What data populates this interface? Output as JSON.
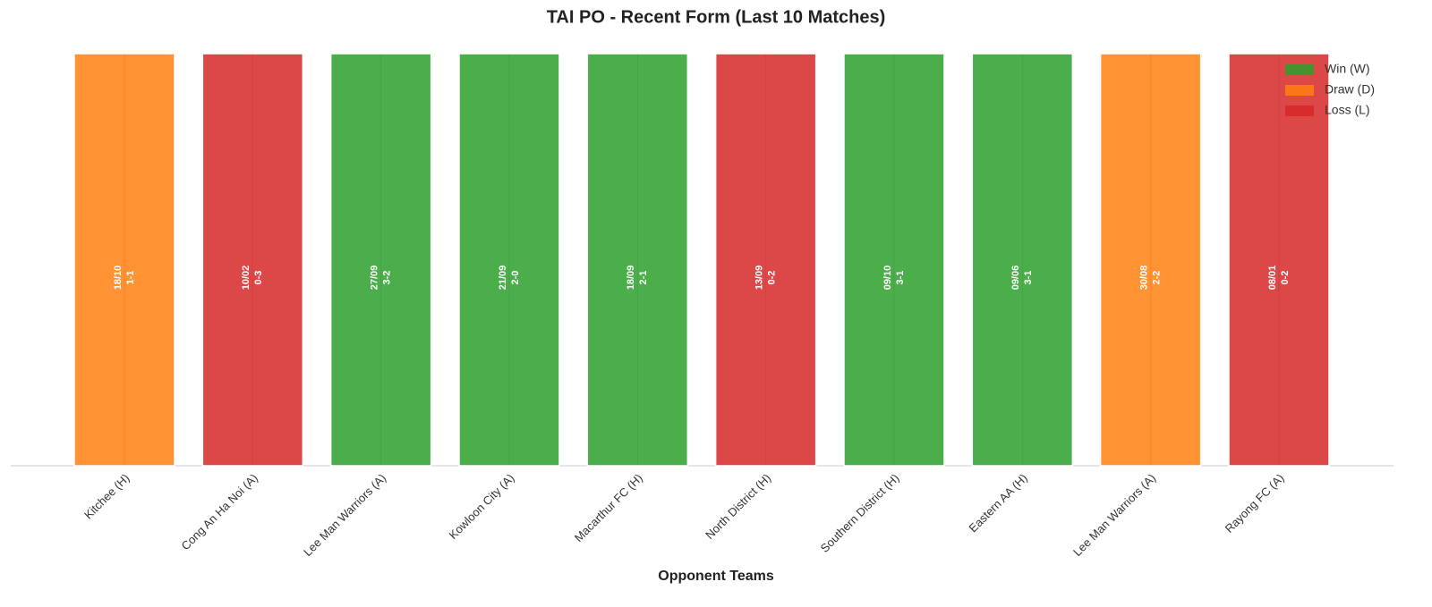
{
  "chart_data": {
    "type": "bar",
    "title": "TAI PO - Recent Form (Last 10 Matches)",
    "xlabel": "Opponent Teams",
    "categories": [
      "Kitchee (H)",
      "Cong An Ha Noi (A)",
      "Lee Man Warriors (A)",
      "Kowloon City (A)",
      "Macarthur FC (H)",
      "North District (H)",
      "Southern District (H)",
      "Eastern AA (H)",
      "Lee Man Warriors (A)",
      "Rayong FC (A)"
    ],
    "values": [
      1,
      1,
      1,
      1,
      1,
      1,
      1,
      1,
      1,
      1
    ],
    "dates": [
      "18/10",
      "10/02",
      "27/09",
      "21/09",
      "18/09",
      "13/09",
      "09/10",
      "09/06",
      "30/08",
      "08/01"
    ],
    "scores": [
      "1-1",
      "0-3",
      "3-2",
      "2-0",
      "2-1",
      "0-2",
      "3-1",
      "3-1",
      "2-2",
      "0-2"
    ],
    "results": [
      "D",
      "L",
      "W",
      "W",
      "W",
      "L",
      "W",
      "W",
      "D",
      "L"
    ],
    "legend": [
      {
        "name": "Win (W)",
        "result": "W",
        "color": "#2ca02c"
      },
      {
        "name": "Draw (D)",
        "result": "D",
        "color": "#ff7f0e"
      },
      {
        "name": "Loss (L)",
        "result": "L",
        "color": "#d62728"
      }
    ],
    "legend_loc": "upper right",
    "alpha": 0.85,
    "ylim": [
      0,
      1.05
    ]
  }
}
